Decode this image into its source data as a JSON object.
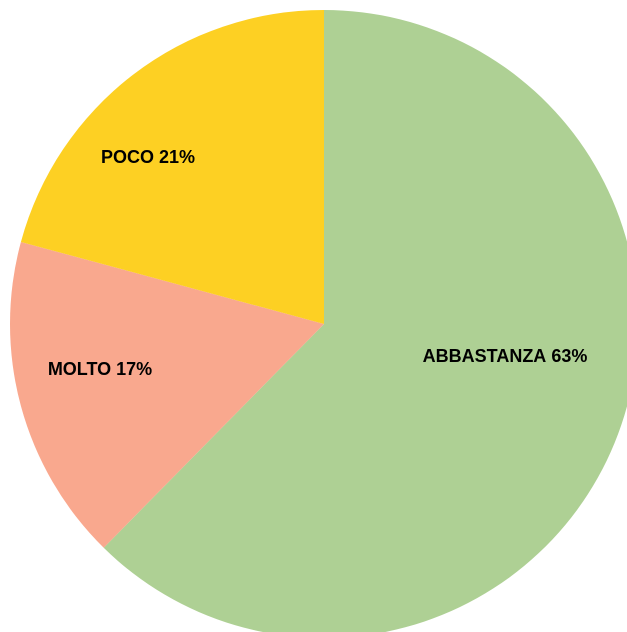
{
  "chart_data": {
    "type": "pie",
    "categories": [
      "ABBASTANZA",
      "MOLTO",
      "POCO"
    ],
    "values": [
      63,
      17,
      21
    ],
    "value_labels": [
      "63%",
      "17%",
      "21%"
    ],
    "colors": [
      "#aed094",
      "#f9a88e",
      "#fdd023"
    ]
  }
}
